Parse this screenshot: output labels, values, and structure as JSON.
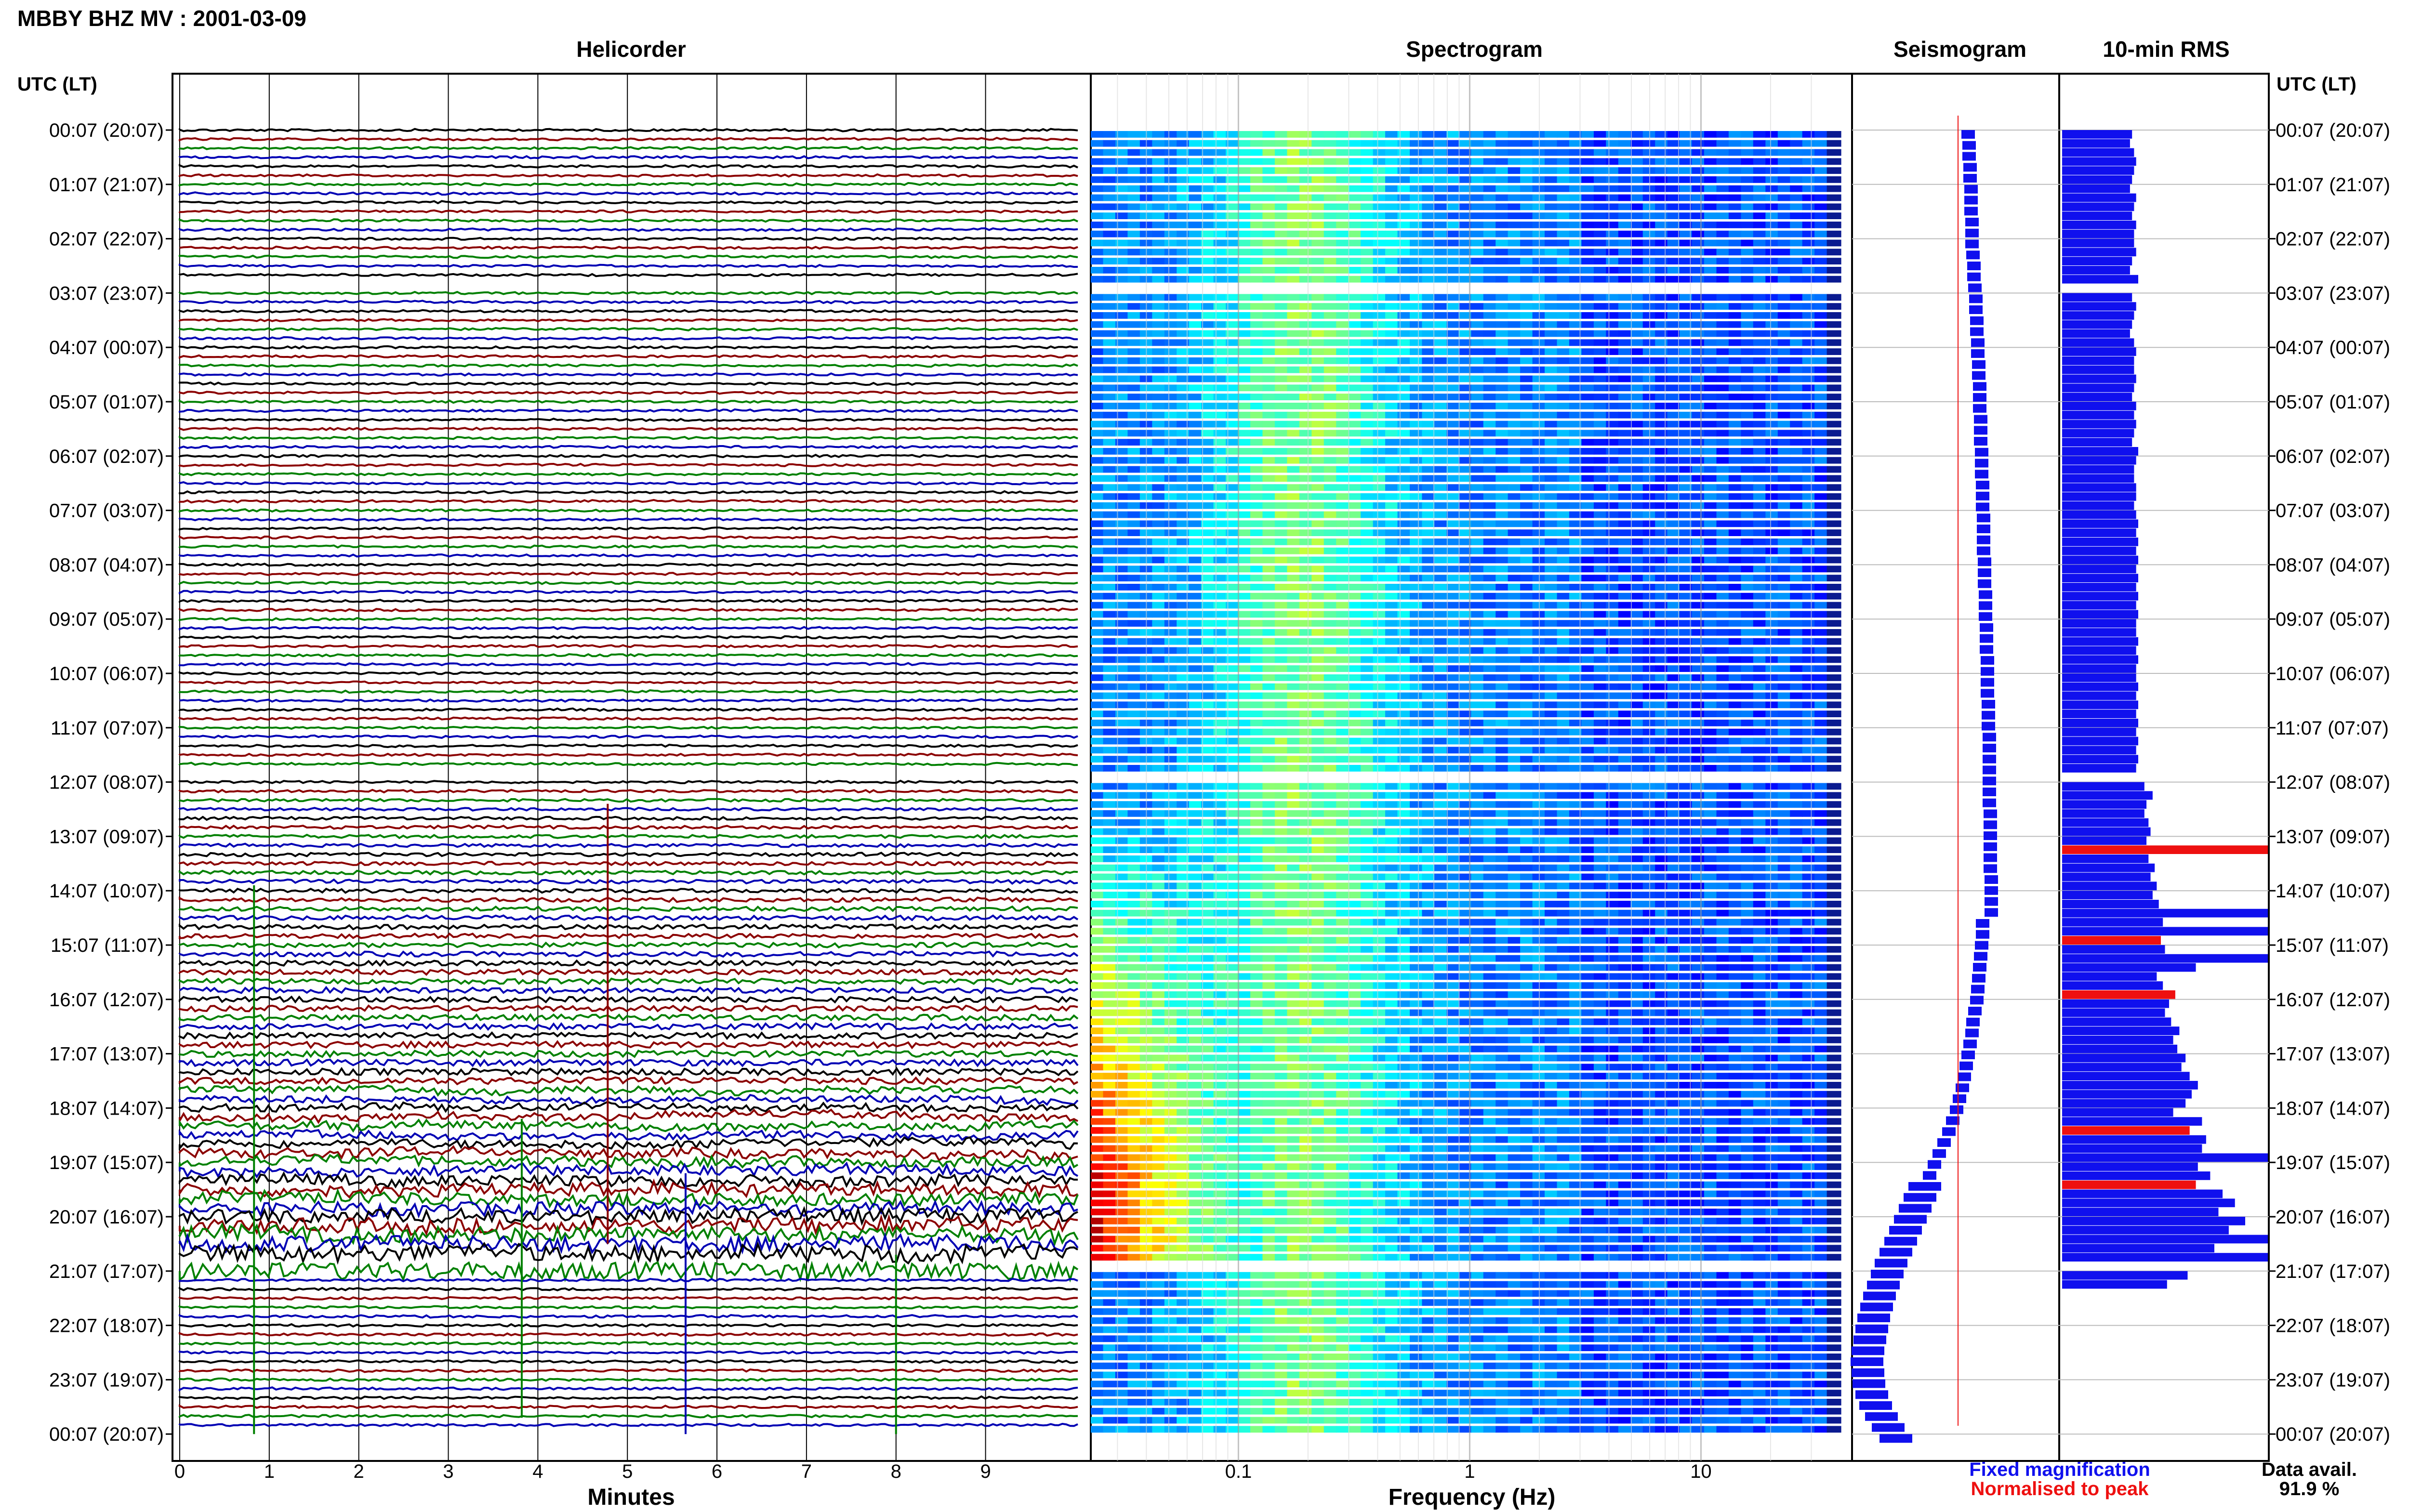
{
  "header": {
    "title": "MBBY BHZ MV : 2001-03-09",
    "utc_label_left": "UTC (LT)",
    "utc_label_right": "UTC (LT)"
  },
  "panels": {
    "helicorder": "Helicorder",
    "spectrogram": "Spectrogram",
    "seismogram": "Seismogram",
    "rms": "10-min RMS"
  },
  "axes": {
    "helicorder_xlabel": "Minutes",
    "spectrogram_xlabel": "Frequency (Hz)"
  },
  "legend": {
    "fixed": "Fixed magnification",
    "normalised": "Normalised to peak",
    "fixed_color": "#1010ee",
    "normalised_color": "#ee1010"
  },
  "availability": {
    "label": "Data avail.",
    "value": "91.9 %"
  },
  "chart_data": {
    "type": "heatmap",
    "time_ticks": [
      "00:07 (20:07)",
      "01:07 (21:07)",
      "02:07 (22:07)",
      "03:07 (23:07)",
      "04:07 (00:07)",
      "05:07 (01:07)",
      "06:07 (02:07)",
      "07:07 (03:07)",
      "08:07 (04:07)",
      "09:07 (05:07)",
      "10:07 (06:07)",
      "11:07 (07:07)",
      "12:07 (08:07)",
      "13:07 (09:07)",
      "14:07 (10:07)",
      "15:07 (11:07)",
      "16:07 (12:07)",
      "17:07 (13:07)",
      "18:07 (14:07)",
      "19:07 (15:07)",
      "20:07 (16:07)",
      "21:07 (17:07)",
      "22:07 (18:07)",
      "23:07 (19:07)",
      "00:07 (20:07)"
    ],
    "minute_ticks": [
      "0",
      "1",
      "2",
      "3",
      "4",
      "5",
      "6",
      "7",
      "8",
      "9"
    ],
    "minute_values": [
      0,
      1,
      2,
      3,
      4,
      5,
      6,
      7,
      8,
      9
    ],
    "minute_range": [
      0,
      10.1
    ],
    "freq_ticks": [
      "0.1",
      "1",
      "10"
    ],
    "freq_values": [
      0.1,
      1,
      10
    ],
    "freq_range": [
      0.023,
      45
    ],
    "freq_scale": "log",
    "trace_colors": [
      "#000000",
      "#8b0000",
      "#008000",
      "#0000b4"
    ],
    "gap_hours": [
      3,
      12,
      21
    ],
    "rms_scale": [
      0,
      10
    ],
    "rms_levels": [
      3.4,
      3.3,
      3.5,
      3.6,
      3.5,
      3.4,
      3.3,
      3.6,
      3.5,
      3.4,
      3.6,
      3.5,
      3.5,
      3.6,
      3.4,
      3.3,
      3.7,
      3.5,
      3.4,
      3.6,
      3.5,
      3.4,
      3.3,
      3.5,
      3.6,
      3.5,
      3.5,
      3.6,
      3.5,
      3.4,
      3.6,
      3.5,
      3.6,
      3.5,
      3.4,
      3.7,
      3.6,
      3.5,
      3.5,
      3.6,
      3.6,
      3.5,
      3.6,
      3.7,
      3.6,
      3.7,
      3.6,
      3.7,
      3.6,
      3.7,
      3.6,
      3.7,
      3.6,
      3.7,
      3.6,
      3.6,
      3.7,
      3.6,
      3.7,
      3.6,
      3.6,
      3.7,
      3.6,
      3.7,
      3.6,
      3.7,
      3.6,
      3.7,
      3.6,
      3.7,
      3.6,
      3.6,
      4.0,
      4.4,
      4.1,
      4.0,
      4.2,
      4.3,
      4.1,
      10,
      4.2,
      4.5,
      4.3,
      4.6,
      4.4,
      4.7,
      10,
      4.9,
      10,
      4.8,
      5.0,
      10,
      6.5,
      4.6,
      4.9,
      5.5,
      5.2,
      5.0,
      5.3,
      5.7,
      5.4,
      5.6,
      6.0,
      5.8,
      6.2,
      6.6,
      6.3,
      6.0,
      5.4,
      6.8,
      6.2,
      7.0,
      6.8,
      10,
      6.6,
      7.2,
      6.5,
      7.8,
      8.4,
      7.6,
      8.9,
      8.1,
      10,
      7.4,
      10,
      10,
      6.1,
      5.1
    ],
    "rms_normalised_rows": [
      79,
      89,
      95,
      110,
      116,
      125
    ],
    "seis_offsets": [
      0.0,
      0.1,
      0.1,
      0.2,
      0.2,
      0.3,
      0.3,
      0.3,
      0.4,
      0.4,
      0.4,
      0.5,
      0.6,
      0.6,
      0.7,
      0.8,
      0.8,
      0.9,
      0.9,
      1.0,
      1.0,
      1.1,
      1.1,
      1.2,
      1.2,
      1.2,
      1.3,
      1.3,
      1.3,
      1.4,
      1.4,
      1.4,
      1.5,
      1.5,
      1.5,
      1.6,
      1.6,
      1.6,
      1.6,
      1.7,
      1.7,
      1.7,
      1.8,
      1.8,
      1.8,
      1.9,
      1.9,
      1.9,
      2.0,
      2.0,
      2.0,
      2.0,
      2.1,
      2.1,
      2.1,
      2.2,
      2.2,
      2.2,
      2.2,
      2.2,
      2.2,
      2.2,
      2.3,
      2.3,
      2.3,
      2.3,
      2.3,
      2.3,
      2.4,
      2.4,
      2.4,
      2.4,
      1.5,
      1.5,
      1.4,
      1.3,
      1.2,
      1.1,
      1.0,
      0.9,
      0.7,
      0.5,
      0.4,
      0.2,
      0.0,
      -0.2,
      -0.4,
      -0.6,
      -0.9,
      -1.2,
      -1.6,
      -2.0,
      -2.5,
      -3.0,
      -3.5,
      -4.0,
      -4.5,
      -5.0,
      -5.5,
      -6.0,
      -6.5,
      -7.0,
      -7.5,
      -8.0,
      -8.4,
      -8.8,
      -9.2,
      -9.5,
      -9.8,
      -10.0,
      -10.2,
      -10.4,
      -10.5,
      -10.4,
      -10.3,
      -10.0,
      -9.6,
      -9.0,
      -8.3,
      -7.5
    ]
  }
}
